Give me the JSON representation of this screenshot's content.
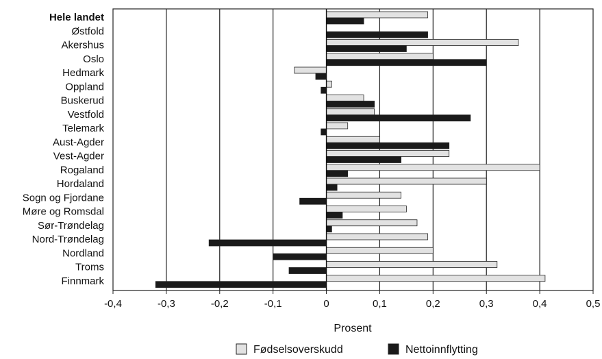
{
  "chart_data": {
    "type": "bar",
    "orientation": "horizontal",
    "categories": [
      "Hele landet",
      "Østfold",
      "Akershus",
      "Oslo",
      "Hedmark",
      "Oppland",
      "Buskerud",
      "Vestfold",
      "Telemark",
      "Aust-Agder",
      "Vest-Agder",
      "Rogaland",
      "Hordaland",
      "Sogn og Fjordane",
      "Møre og Romsdal",
      "Sør-Trøndelag",
      "Nord-Trøndelag",
      "Nordland",
      "Troms",
      "Finnmark"
    ],
    "series": [
      {
        "name": "Fødselsoverskudd",
        "color": "#e2e2e2",
        "values": [
          0.19,
          0,
          0.36,
          0.2,
          -0.06,
          0.01,
          0.07,
          0.09,
          0.04,
          0.1,
          0.23,
          0.4,
          0.3,
          0.14,
          0.15,
          0.17,
          0.19,
          0.2,
          0.32,
          0.41
        ]
      },
      {
        "name": "Nettoinnflytting",
        "color": "#1a1a1a",
        "values": [
          0.07,
          0.19,
          0.15,
          0.3,
          -0.02,
          -0.01,
          0.09,
          0.27,
          -0.01,
          0.23,
          0.14,
          0.04,
          0.02,
          -0.05,
          0.03,
          0.01,
          -0.22,
          -0.1,
          -0.07,
          -0.32
        ]
      }
    ],
    "bold_categories": [
      "Hele landet"
    ],
    "xlabel": "Prosent",
    "ylabel": "",
    "xlim": [
      -0.4,
      0.5
    ],
    "xticks": [
      -0.4,
      -0.3,
      -0.2,
      -0.1,
      0,
      0.1,
      0.2,
      0.3,
      0.4,
      0.5
    ],
    "xtick_labels": [
      "-0,4",
      "-0,3",
      "-0,2",
      "-0,1",
      "0",
      "0,1",
      "0,2",
      "0,3",
      "0,4",
      "0,5"
    ],
    "grid": "vertical",
    "legend_position": "bottom"
  }
}
